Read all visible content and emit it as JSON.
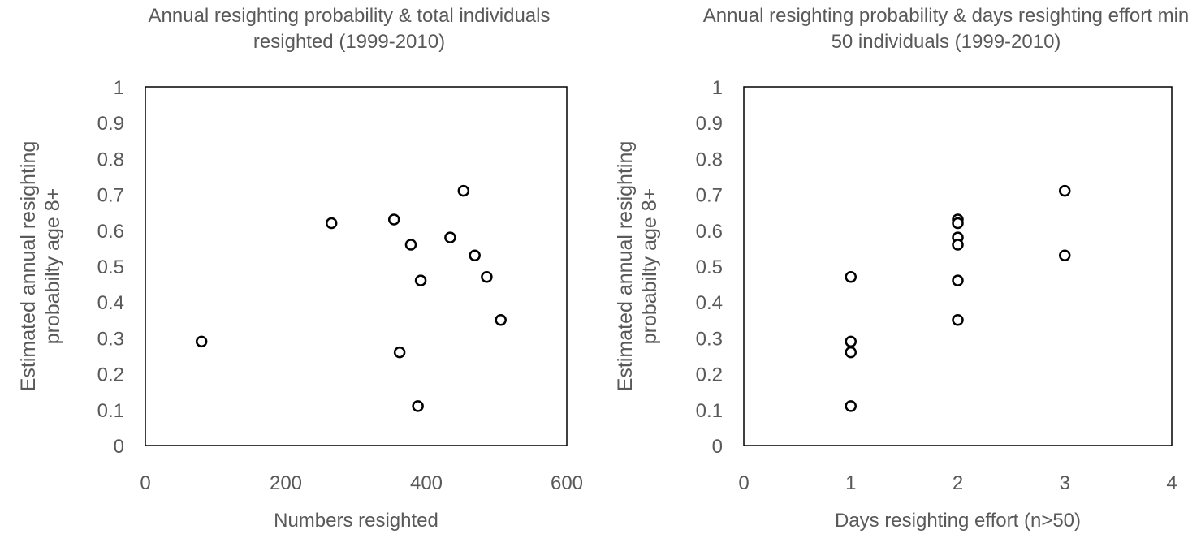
{
  "chart_data": [
    {
      "type": "scatter",
      "title": "Annual resighting probability & total individuals resighted (1999-2010)",
      "x_label": "Numbers resighted",
      "y_label": "Estimated annual resighting probabilty age 8+",
      "x": [
        80,
        265,
        354,
        378,
        392,
        362,
        388,
        434,
        453,
        469,
        486,
        506
      ],
      "y": [
        0.29,
        0.62,
        0.63,
        0.56,
        0.46,
        0.26,
        0.11,
        0.58,
        0.71,
        0.53,
        0.47,
        0.35
      ],
      "color": "#000000",
      "xlim": [
        0,
        600
      ],
      "xticks": [
        0,
        200,
        400,
        600
      ],
      "ylim": [
        0,
        1
      ],
      "yticks": [
        0,
        0.1,
        0.2,
        0.3,
        0.4,
        0.5,
        0.6,
        0.7,
        0.8,
        0.9,
        1
      ]
    },
    {
      "type": "scatter",
      "title": "Annual resighting probability & days resighting effort min 50 individuals (1999-2010)",
      "x_label": "Days resighting effort (n>50)",
      "y_label": "Estimated annual resighting probabilty age 8+",
      "x": [
        1,
        1,
        1,
        1,
        2,
        2,
        2,
        2,
        2,
        2,
        3,
        3
      ],
      "y": [
        0.47,
        0.29,
        0.26,
        0.11,
        0.63,
        0.62,
        0.58,
        0.56,
        0.46,
        0.35,
        0.71,
        0.53
      ],
      "color": "#000000",
      "xlim": [
        0,
        4
      ],
      "xticks": [
        0,
        1,
        2,
        3,
        4
      ],
      "ylim": [
        0,
        1
      ],
      "yticks": [
        0,
        0.1,
        0.2,
        0.3,
        0.4,
        0.5,
        0.6,
        0.7,
        0.8,
        0.9,
        1
      ]
    }
  ]
}
